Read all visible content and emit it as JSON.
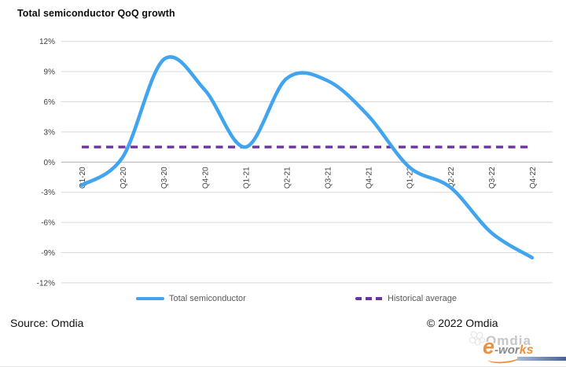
{
  "header": {
    "title": "Total semiconductor QoQ growth"
  },
  "footer": {
    "source": "Source: Omdia",
    "copyright": "© 2022 Omdia"
  },
  "watermark": {
    "omdia": "Omdia",
    "eworks_e": "e",
    "eworks_mid": "-wor",
    "eworks_ks": "ks"
  },
  "legend": {
    "items": [
      {
        "label": "Total semiconductor"
      },
      {
        "label": "Historical average"
      }
    ]
  },
  "colors": {
    "series_blue": "#41a4ee",
    "avg_purple": "#7030a0",
    "gridline": "#d9d9d9",
    "axis_line": "#ababab",
    "tick_text": "#3f3f3f"
  },
  "chart_data": {
    "type": "line",
    "title": "Total semiconductor QoQ growth",
    "categories": [
      "Q1-20",
      "Q2-20",
      "Q3-20",
      "Q4-20",
      "Q1-21",
      "Q2-21",
      "Q3-21",
      "Q4-21",
      "Q1-22",
      "Q2-22",
      "Q3-22",
      "Q4-22"
    ],
    "series": [
      {
        "name": "Total semiconductor",
        "style": "smooth-line",
        "color": "#41a4ee",
        "values": [
          -2.3,
          0.5,
          10.2,
          7.2,
          1.5,
          8.3,
          8.1,
          4.6,
          -0.5,
          -2.5,
          -7.0,
          -9.5
        ]
      },
      {
        "name": "Historical average",
        "style": "dashed-constant",
        "color": "#7030a0",
        "value": 1.5
      }
    ],
    "yticks": [
      {
        "value": 12,
        "label": "12%"
      },
      {
        "value": 9,
        "label": "9%"
      },
      {
        "value": 6,
        "label": "6%"
      },
      {
        "value": 3,
        "label": "3%"
      },
      {
        "value": 0,
        "label": "0%"
      },
      {
        "value": -3,
        "label": "-3%"
      },
      {
        "value": -6,
        "label": "-6%"
      },
      {
        "value": -9,
        "label": "-9%"
      },
      {
        "value": -12,
        "label": "-12%"
      }
    ],
    "ylim": [
      -12,
      12
    ],
    "grid": "horizontal-only",
    "legend_position": "bottom",
    "x_label_rotation_deg": 90
  }
}
